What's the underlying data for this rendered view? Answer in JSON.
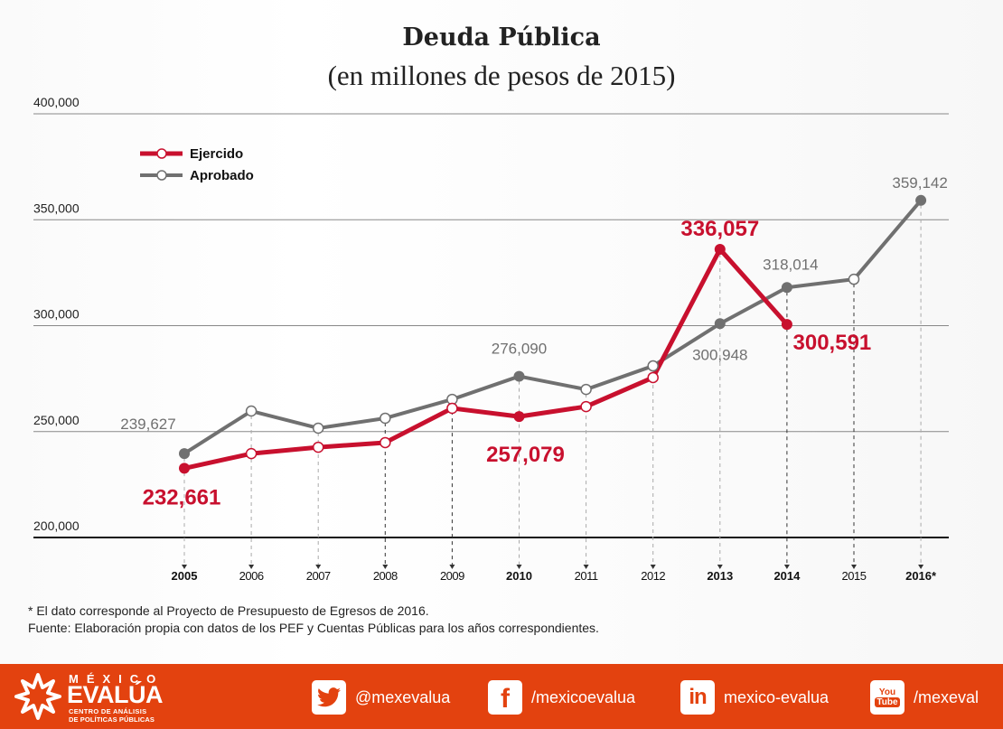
{
  "header": {
    "title": "Deuda Pública",
    "subtitle": "(en millones de pesos de 2015)"
  },
  "chart_data": {
    "type": "line",
    "title": "Deuda Pública",
    "subtitle": "(en millones de pesos de 2015)",
    "xlabel": "",
    "ylabel": "",
    "ylim": [
      200000,
      400000
    ],
    "yticks": [
      400000,
      350000,
      300000,
      250000,
      200000
    ],
    "ytick_labels": [
      "400,000",
      "350,000",
      "300,000",
      "250,000",
      "200,000"
    ],
    "grid": true,
    "legend_position": "top-left",
    "categories": [
      "2005",
      "2006",
      "2007",
      "2008",
      "2009",
      "2010",
      "2011",
      "2012",
      "2013",
      "2014",
      "2015",
      "2016*"
    ],
    "bold_categories": [
      "2005",
      "2010",
      "2013",
      "2014",
      "2016*"
    ],
    "series": [
      {
        "name": "Ejercido",
        "color": "#c8102e",
        "values": [
          232661,
          239600,
          242600,
          244800,
          261000,
          257079,
          261800,
          275500,
          336057,
          300591,
          null,
          null
        ],
        "labels": {
          "0": "232,661",
          "5": "257,079",
          "8": "336,057",
          "9": "300,591"
        },
        "filled_markers": [
          0,
          5,
          8,
          9
        ]
      },
      {
        "name": "Aprobado",
        "color": "#707070",
        "values": [
          239627,
          259700,
          251600,
          256300,
          265200,
          276090,
          269900,
          281000,
          300948,
          318014,
          321900,
          359142
        ],
        "labels": {
          "0": "239,627",
          "5": "276,090",
          "8": "300,948",
          "9": "318,014",
          "11": "359,142"
        },
        "filled_markers": [
          0,
          5,
          8,
          9,
          11
        ]
      }
    ]
  },
  "notes": {
    "line1": "* El dato corresponde al Proyecto de Presupuesto de Egresos de 2016.",
    "line2": "Fuente: Elaboración propia con datos de los PEF y Cuentas Públicas para los años correspondientes."
  },
  "footer": {
    "logo": {
      "top": "MÉXICO",
      "main": "EVALÚA",
      "line1": "CENTRO DE ANÁLISIS",
      "line2": "DE POLÍTICAS PÚBLICAS"
    },
    "social": [
      {
        "icon": "twitter-icon",
        "label": "@mexevalua"
      },
      {
        "icon": "facebook-icon",
        "label": "/mexicoevalua"
      },
      {
        "icon": "linkedin-icon",
        "label": "mexico-evalua"
      },
      {
        "icon": "youtube-icon",
        "label": "/mexeval"
      }
    ],
    "color": "#e3420f"
  }
}
